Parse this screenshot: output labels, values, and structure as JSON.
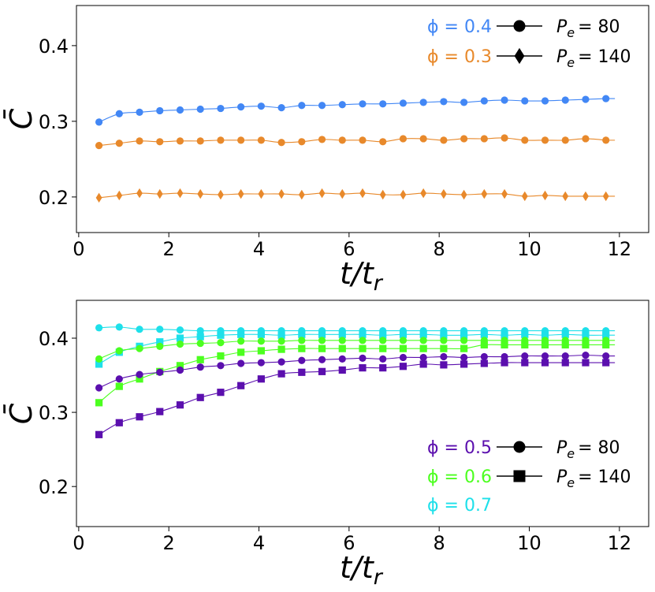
{
  "chart_data": [
    {
      "type": "line",
      "xlabel": "t/t_r",
      "ylabel": "C̄",
      "xlim": [
        -0.05,
        12.65
      ],
      "ylim": [
        0.153,
        0.453
      ],
      "xticks": [
        "0",
        "2",
        "4",
        "6",
        "8",
        "10",
        "12"
      ],
      "yticks": [
        "0.2",
        "0.3",
        "0.4"
      ],
      "legend": {
        "placement": "top-right",
        "phi_entries": [
          {
            "text": "ϕ = 0.4",
            "color": "#4287f5"
          },
          {
            "text": "ϕ = 0.3",
            "color": "#e8892b"
          }
        ],
        "pe_entries": [
          {
            "label": "P",
            "sub": "e",
            "value": "= 80",
            "marker": "circle"
          },
          {
            "label": "P",
            "sub": "e",
            "value": "= 140",
            "marker": "diamond"
          }
        ]
      },
      "series": [
        {
          "phi": "0.4",
          "pe": "80",
          "color": "#4287f5",
          "marker": "circle",
          "x": [
            0.45,
            0.9,
            1.35,
            1.8,
            2.25,
            2.7,
            3.15,
            3.6,
            4.05,
            4.5,
            4.95,
            5.4,
            5.85,
            6.3,
            6.75,
            7.2,
            7.65,
            8.1,
            8.55,
            9.0,
            9.45,
            9.9,
            10.35,
            10.8,
            11.25,
            11.7
          ],
          "y": [
            0.299,
            0.31,
            0.312,
            0.314,
            0.315,
            0.316,
            0.317,
            0.319,
            0.32,
            0.318,
            0.321,
            0.321,
            0.322,
            0.323,
            0.323,
            0.324,
            0.325,
            0.326,
            0.325,
            0.327,
            0.328,
            0.327,
            0.327,
            0.328,
            0.329,
            0.33
          ]
        },
        {
          "phi": "0.3",
          "pe": "80",
          "color": "#e8892b",
          "marker": "circle",
          "x": [
            0.45,
            0.9,
            1.35,
            1.8,
            2.25,
            2.7,
            3.15,
            3.6,
            4.05,
            4.5,
            4.95,
            5.4,
            5.85,
            6.3,
            6.75,
            7.2,
            7.65,
            8.1,
            8.55,
            9.0,
            9.45,
            9.9,
            10.35,
            10.8,
            11.25,
            11.7
          ],
          "y": [
            0.268,
            0.271,
            0.274,
            0.273,
            0.274,
            0.274,
            0.275,
            0.275,
            0.275,
            0.272,
            0.273,
            0.276,
            0.275,
            0.275,
            0.273,
            0.277,
            0.277,
            0.275,
            0.277,
            0.277,
            0.278,
            0.275,
            0.275,
            0.275,
            0.277,
            0.275
          ]
        },
        {
          "phi": "0.3",
          "pe": "140",
          "color": "#e8892b",
          "marker": "diamond",
          "x": [
            0.45,
            0.9,
            1.35,
            1.8,
            2.25,
            2.7,
            3.15,
            3.6,
            4.05,
            4.5,
            4.95,
            5.4,
            5.85,
            6.3,
            6.75,
            7.2,
            7.65,
            8.1,
            8.55,
            9.0,
            9.45,
            9.9,
            10.35,
            10.8,
            11.25,
            11.7
          ],
          "y": [
            0.199,
            0.202,
            0.205,
            0.204,
            0.205,
            0.204,
            0.203,
            0.204,
            0.204,
            0.204,
            0.203,
            0.205,
            0.204,
            0.205,
            0.203,
            0.203,
            0.205,
            0.204,
            0.203,
            0.204,
            0.204,
            0.201,
            0.202,
            0.201,
            0.201,
            0.201
          ]
        }
      ]
    },
    {
      "type": "line",
      "xlabel": "t/t_r",
      "ylabel": "C̄",
      "xlim": [
        -0.05,
        12.65
      ],
      "ylim": [
        0.146,
        0.451
      ],
      "xticks": [
        "0",
        "2",
        "4",
        "6",
        "8",
        "10",
        "12"
      ],
      "yticks": [
        "0.2",
        "0.3",
        "0.4"
      ],
      "legend": {
        "placement": "bottom-right",
        "phi_entries": [
          {
            "text": "ϕ = 0.5",
            "color": "#5b0fae"
          },
          {
            "text": "ϕ = 0.6",
            "color": "#4cff1f"
          },
          {
            "text": "ϕ = 0.7",
            "color": "#1ee0ea"
          }
        ],
        "pe_entries": [
          {
            "label": "P",
            "sub": "e",
            "value": "= 80",
            "marker": "circle"
          },
          {
            "label": "P",
            "sub": "e",
            "value": "= 140",
            "marker": "square"
          }
        ]
      },
      "series": [
        {
          "phi": "0.7",
          "pe": "80",
          "color": "#1ee0ea",
          "marker": "circle",
          "x": [
            0.45,
            0.9,
            1.35,
            1.8,
            2.25,
            2.7,
            3.15,
            3.6,
            4.05,
            4.5,
            4.95,
            5.4,
            5.85,
            6.3,
            6.75,
            7.2,
            7.65,
            8.1,
            8.55,
            9.0,
            9.45,
            9.9,
            10.35,
            10.8,
            11.25,
            11.7
          ],
          "y": [
            0.414,
            0.415,
            0.412,
            0.412,
            0.411,
            0.41,
            0.41,
            0.41,
            0.41,
            0.41,
            0.41,
            0.41,
            0.41,
            0.41,
            0.41,
            0.41,
            0.41,
            0.41,
            0.41,
            0.41,
            0.41,
            0.41,
            0.41,
            0.41,
            0.41,
            0.41
          ]
        },
        {
          "phi": "0.7",
          "pe": "140",
          "color": "#1ee0ea",
          "marker": "square",
          "x": [
            0.45,
            0.9,
            1.35,
            1.8,
            2.25,
            2.7,
            3.15,
            3.6,
            4.05,
            4.5,
            4.95,
            5.4,
            5.85,
            6.3,
            6.75,
            7.2,
            7.65,
            8.1,
            8.55,
            9.0,
            9.45,
            9.9,
            10.35,
            10.8,
            11.25,
            11.7
          ],
          "y": [
            0.365,
            0.381,
            0.389,
            0.395,
            0.4,
            0.402,
            0.404,
            0.405,
            0.405,
            0.404,
            0.405,
            0.405,
            0.405,
            0.405,
            0.404,
            0.405,
            0.405,
            0.404,
            0.404,
            0.405,
            0.404,
            0.405,
            0.404,
            0.405,
            0.404,
            0.404
          ]
        },
        {
          "phi": "0.6",
          "pe": "80",
          "color": "#4cff1f",
          "marker": "circle",
          "x": [
            0.45,
            0.9,
            1.35,
            1.8,
            2.25,
            2.7,
            3.15,
            3.6,
            4.05,
            4.5,
            4.95,
            5.4,
            5.85,
            6.3,
            6.75,
            7.2,
            7.65,
            8.1,
            8.55,
            9.0,
            9.45,
            9.9,
            10.35,
            10.8,
            11.25,
            11.7
          ],
          "y": [
            0.372,
            0.383,
            0.386,
            0.389,
            0.392,
            0.393,
            0.394,
            0.396,
            0.396,
            0.396,
            0.397,
            0.397,
            0.397,
            0.397,
            0.397,
            0.397,
            0.397,
            0.397,
            0.397,
            0.397,
            0.397,
            0.397,
            0.397,
            0.397,
            0.397,
            0.397
          ]
        },
        {
          "phi": "0.6",
          "pe": "140",
          "color": "#4cff1f",
          "marker": "square",
          "x": [
            0.45,
            0.9,
            1.35,
            1.8,
            2.25,
            2.7,
            3.15,
            3.6,
            4.05,
            4.5,
            4.95,
            5.4,
            5.85,
            6.3,
            6.75,
            7.2,
            7.65,
            8.1,
            8.55,
            9.0,
            9.45,
            9.9,
            10.35,
            10.8,
            11.25,
            11.7
          ],
          "y": [
            0.313,
            0.335,
            0.345,
            0.355,
            0.363,
            0.371,
            0.376,
            0.381,
            0.383,
            0.385,
            0.386,
            0.386,
            0.386,
            0.386,
            0.386,
            0.386,
            0.386,
            0.386,
            0.386,
            0.391,
            0.391,
            0.391,
            0.391,
            0.391,
            0.391,
            0.391
          ]
        },
        {
          "phi": "0.5",
          "pe": "80",
          "color": "#5b0fae",
          "marker": "circle",
          "x": [
            0.45,
            0.9,
            1.35,
            1.8,
            2.25,
            2.7,
            3.15,
            3.6,
            4.05,
            4.5,
            4.95,
            5.4,
            5.85,
            6.3,
            6.75,
            7.2,
            7.65,
            8.1,
            8.55,
            9.0,
            9.45,
            9.9,
            10.35,
            10.8,
            11.25,
            11.7
          ],
          "y": [
            0.333,
            0.345,
            0.351,
            0.354,
            0.357,
            0.361,
            0.363,
            0.366,
            0.367,
            0.368,
            0.37,
            0.371,
            0.372,
            0.373,
            0.372,
            0.374,
            0.374,
            0.375,
            0.374,
            0.375,
            0.375,
            0.376,
            0.376,
            0.376,
            0.377,
            0.376
          ]
        },
        {
          "phi": "0.5",
          "pe": "140",
          "color": "#5b0fae",
          "marker": "square",
          "x": [
            0.45,
            0.9,
            1.35,
            1.8,
            2.25,
            2.7,
            3.15,
            3.6,
            4.05,
            4.5,
            4.95,
            5.4,
            5.85,
            6.3,
            6.75,
            7.2,
            7.65,
            8.1,
            8.55,
            9.0,
            9.45,
            9.9,
            10.35,
            10.8,
            11.25,
            11.7
          ],
          "y": [
            0.27,
            0.286,
            0.294,
            0.301,
            0.31,
            0.32,
            0.327,
            0.336,
            0.345,
            0.352,
            0.354,
            0.355,
            0.357,
            0.36,
            0.36,
            0.362,
            0.365,
            0.364,
            0.365,
            0.366,
            0.367,
            0.367,
            0.367,
            0.367,
            0.367,
            0.367
          ]
        }
      ]
    }
  ]
}
